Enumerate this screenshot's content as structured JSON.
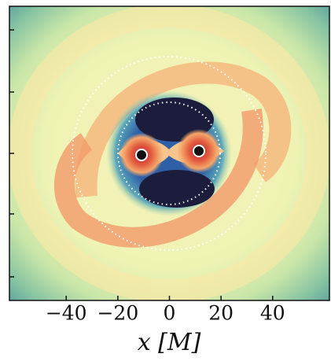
{
  "chart_data": {
    "type": "heatmap",
    "x_label": "x [M]",
    "xlim": [
      -62,
      62
    ],
    "xticks": [
      {
        "value": -40,
        "label": "−40"
      },
      {
        "value": -20,
        "label": "−20"
      },
      0,
      20,
      40
    ]
  }
}
